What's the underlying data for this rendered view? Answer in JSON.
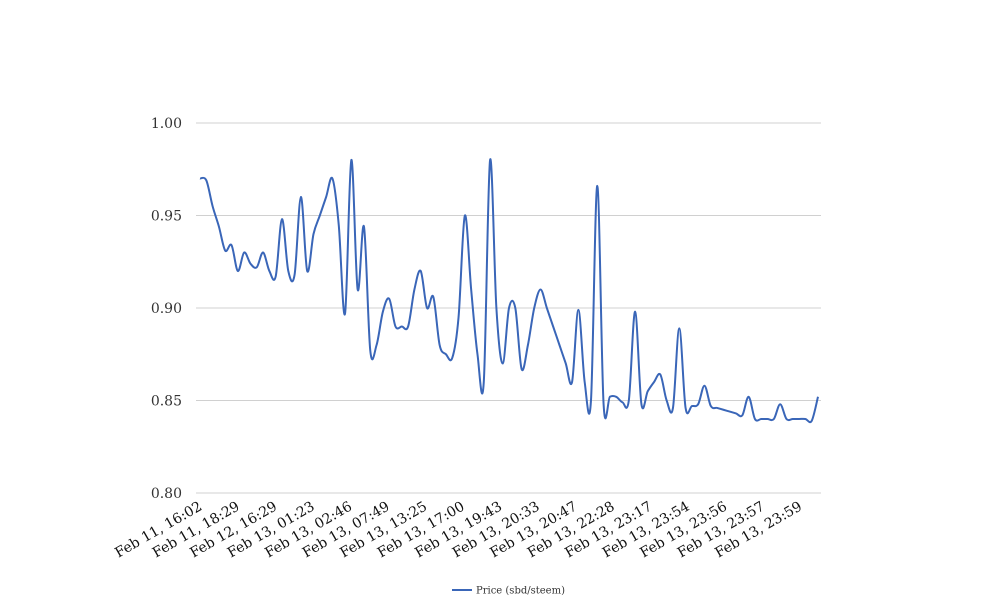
{
  "chart_data": {
    "type": "line",
    "title": "",
    "xlabel": "",
    "ylabel": "",
    "ylim": [
      0.8,
      1.0
    ],
    "yticks": [
      "0.80",
      "0.85",
      "0.90",
      "0.95",
      "1.00"
    ],
    "ytick_values": [
      0.8,
      0.85,
      0.9,
      0.95,
      1.0
    ],
    "xtick_labels": [
      "Feb 11, 16:02",
      "Feb 11, 18:29",
      "Feb 12, 16:29",
      "Feb 13, 01:23",
      "Feb 13, 02:46",
      "Feb 13, 07:49",
      "Feb 13, 13:25",
      "Feb 13, 17:00",
      "Feb 13, 19:43",
      "Feb 13, 20:33",
      "Feb 13, 20:47",
      "Feb 13, 22:28",
      "Feb 13, 23:17",
      "Feb 13, 23:54",
      "Feb 13, 23:56",
      "Feb 13, 23:57",
      "Feb 13, 23:59"
    ],
    "grid": true,
    "legend_position": "bottom",
    "line_color": "#3A66B8",
    "grid_color": "#D0D0D0",
    "series": [
      {
        "name": "Price (sbd/steem)",
        "values": [
          0.97,
          0.969,
          0.955,
          0.944,
          0.931,
          0.934,
          0.92,
          0.93,
          0.924,
          0.922,
          0.93,
          0.92,
          0.917,
          0.948,
          0.92,
          0.918,
          0.96,
          0.92,
          0.94,
          0.95,
          0.96,
          0.97,
          0.945,
          0.897,
          0.98,
          0.91,
          0.944,
          0.877,
          0.88,
          0.898,
          0.905,
          0.89,
          0.89,
          0.89,
          0.91,
          0.92,
          0.9,
          0.906,
          0.88,
          0.875,
          0.873,
          0.895,
          0.95,
          0.91,
          0.875,
          0.86,
          0.98,
          0.9,
          0.87,
          0.9,
          0.9,
          0.867,
          0.88,
          0.9,
          0.91,
          0.9,
          0.89,
          0.88,
          0.87,
          0.86,
          0.899,
          0.86,
          0.85,
          0.966,
          0.848,
          0.852,
          0.852,
          0.849,
          0.85,
          0.898,
          0.848,
          0.855,
          0.86,
          0.864,
          0.85,
          0.846,
          0.889,
          0.846,
          0.847,
          0.848,
          0.858,
          0.847,
          0.846,
          0.845,
          0.844,
          0.843,
          0.842,
          0.852,
          0.84,
          0.84,
          0.84,
          0.84,
          0.848,
          0.84,
          0.84,
          0.84,
          0.84,
          0.839,
          0.852
        ]
      }
    ]
  }
}
